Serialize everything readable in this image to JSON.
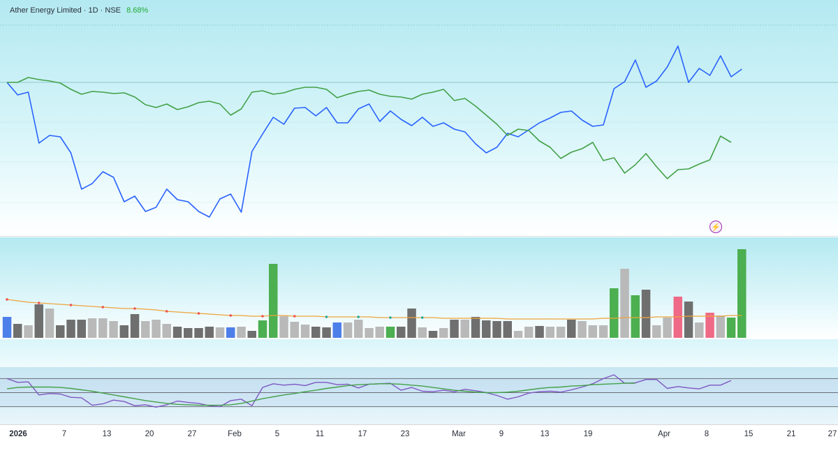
{
  "header": {
    "symbol": "Ather Energy Limited",
    "sep1": "·",
    "interval": "1D",
    "sep2": "·",
    "exchange": "NSE",
    "change": "8.68%"
  },
  "alert": {
    "icon": "lightning-icon",
    "glyph": "⚡"
  },
  "time_axis": {
    "ticks": [
      "2026",
      "7",
      "13",
      "20",
      "27",
      "Feb",
      "5",
      "11",
      "17",
      "23",
      "Mar",
      "9",
      "13",
      "19",
      "Apr",
      "8",
      "15",
      "21",
      "27"
    ],
    "major": [
      "2026"
    ]
  },
  "colors": {
    "blue_line": "#2962ff",
    "green_line": "#43a047",
    "purple_line": "#7e57c2",
    "vol_green": "#4caf50",
    "vol_dark_gray": "#6f6f6f",
    "vol_light_gray": "#b9b9b9",
    "vol_blue": "#4d7fea",
    "vol_red": "#ef6a86",
    "vol_ma": "#f0a33a"
  },
  "chart_data": [
    {
      "type": "line",
      "series": [
        {
          "color": "blue",
          "values": [
            118,
            136,
            132,
            205,
            194,
            196,
            219,
            271,
            263,
            246,
            254,
            289,
            281,
            303,
            297,
            271,
            286,
            289,
            303,
            311,
            285,
            278,
            304,
            217,
            192,
            168,
            178,
            155,
            154,
            166,
            154,
            176,
            176,
            156,
            149,
            174,
            159,
            171,
            180,
            168,
            181,
            176,
            185,
            189,
            206,
            219,
            211,
            191,
            196,
            186,
            176,
            169,
            161,
            159,
            172,
            181,
            179,
            127,
            117,
            86,
            125,
            116,
            96,
            66,
            118,
            98,
            108,
            80,
            110,
            99
          ]
        },
        {
          "color": "green",
          "values": [
            118,
            118,
            111,
            114,
            116,
            119,
            128,
            135,
            131,
            132,
            134,
            133,
            139,
            150,
            154,
            149,
            157,
            153,
            147,
            145,
            149,
            165,
            156,
            132,
            130,
            135,
            133,
            128,
            125,
            125,
            128,
            140,
            135,
            131,
            129,
            135,
            138,
            139,
            142,
            135,
            132,
            128,
            144,
            141,
            152,
            165,
            178,
            194,
            185,
            187,
            202,
            211,
            227,
            218,
            213,
            204,
            230,
            226,
            248,
            236,
            220,
            239,
            256,
            243,
            242,
            235,
            229,
            195,
            204
          ]
        }
      ]
    },
    {
      "type": "bar",
      "series": [
        {
          "name": "volume",
          "values": [
            30,
            20,
            18,
            48,
            42,
            18,
            26,
            26,
            28,
            28,
            24,
            18,
            34,
            24,
            26,
            20,
            16,
            14,
            14,
            16,
            15,
            15,
            16,
            10,
            25,
            106,
            31,
            23,
            19,
            16,
            15,
            22,
            22,
            26,
            14,
            16,
            16,
            16,
            42,
            15,
            10,
            14,
            26,
            26,
            30,
            25,
            24,
            24,
            10,
            16,
            17,
            16,
            16,
            26,
            24,
            18,
            18,
            71,
            99,
            61,
            69,
            18,
            29,
            59,
            52,
            22,
            36,
            32,
            29,
            127
          ],
          "colors": [
            "blue",
            "dark",
            "light",
            "dark",
            "light",
            "dark",
            "dark",
            "dark",
            "light",
            "light",
            "light",
            "dark",
            "dark",
            "light",
            "light",
            "light",
            "dark",
            "dark",
            "dark",
            "dark",
            "light",
            "blue",
            "light",
            "dark",
            "green",
            "green",
            "light",
            "light",
            "light",
            "dark",
            "dark",
            "blue",
            "light",
            "light",
            "light",
            "light",
            "green",
            "dark",
            "dark",
            "light",
            "dark",
            "light",
            "dark",
            "light",
            "dark",
            "dark",
            "dark",
            "dark",
            "light",
            "light",
            "dark",
            "light",
            "light",
            "dark",
            "light",
            "light",
            "light",
            "green",
            "light",
            "green",
            "dark",
            "light",
            "light",
            "red",
            "dark",
            "light",
            "red",
            "light",
            "green",
            "green"
          ]
        },
        {
          "name": "volume-ma",
          "values": [
            55,
            53,
            51,
            50,
            49,
            48,
            47,
            46,
            45,
            44,
            43,
            42,
            42,
            41,
            40,
            38,
            37,
            36,
            35,
            34,
            33,
            32,
            32,
            31,
            31,
            32,
            32,
            31,
            31,
            31,
            30,
            30,
            30,
            30,
            30,
            29,
            29,
            29,
            29,
            29,
            29,
            28,
            28,
            28,
            28,
            28,
            28,
            27,
            27,
            27,
            27,
            27,
            27,
            27,
            27,
            27,
            28,
            28,
            29,
            29,
            29,
            30,
            30,
            30,
            31,
            31,
            31,
            31,
            32,
            32
          ]
        }
      ]
    },
    {
      "type": "line",
      "series": [
        {
          "color": "purple",
          "values": [
            80,
            72,
            73,
            45,
            48,
            47,
            40,
            39,
            23,
            26,
            34,
            31,
            22,
            24,
            19,
            24,
            32,
            29,
            27,
            22,
            20,
            33,
            36,
            22,
            61,
            69,
            66,
            68,
            65,
            72,
            72,
            67,
            68,
            60,
            68,
            69,
            70,
            55,
            61,
            53,
            52,
            55,
            52,
            57,
            54,
            50,
            44,
            36,
            41,
            49,
            52,
            53,
            51,
            56,
            62,
            69,
            80,
            88,
            70,
            71,
            78,
            78,
            59,
            63,
            60,
            58,
            66,
            66,
            76
          ]
        },
        {
          "color": "green",
          "values": [
            58,
            61,
            62,
            62,
            62,
            61,
            59,
            56,
            53,
            49,
            45,
            41,
            37,
            33,
            30,
            27,
            25,
            24,
            23,
            23,
            23,
            24,
            27,
            32,
            37,
            41,
            45,
            48,
            52,
            55,
            59,
            62,
            65,
            67,
            68,
            69,
            69,
            68,
            66,
            64,
            61,
            58,
            55,
            53,
            51,
            50,
            50,
            51,
            53,
            56,
            59,
            61,
            62,
            64,
            65,
            67,
            68,
            69,
            70,
            70
          ]
        }
      ]
    }
  ]
}
